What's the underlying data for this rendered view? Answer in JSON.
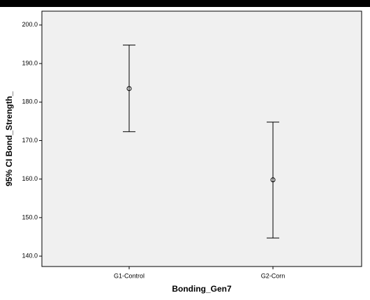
{
  "chart_data": {
    "type": "errorbar",
    "x_label": "Bonding_Gen7",
    "y_label": "95% CI Bond_Strength_",
    "categories": [
      "G1-Control",
      "G2-Corn"
    ],
    "values": [
      183.5,
      159.8
    ],
    "lower": [
      172.3,
      144.7
    ],
    "upper": [
      194.8,
      174.8
    ],
    "color": "#000000",
    "ylim": [
      137.3,
      203.6
    ],
    "yticks": [
      {
        "value": 140,
        "label": "140.0"
      },
      {
        "value": 150,
        "label": "150.0"
      },
      {
        "value": 160,
        "label": "160.0"
      },
      {
        "value": 170,
        "label": "170.0"
      },
      {
        "value": 180,
        "label": "180.0"
      },
      {
        "value": 190,
        "label": "190.0"
      },
      {
        "value": 200,
        "label": "200.0"
      }
    ]
  }
}
